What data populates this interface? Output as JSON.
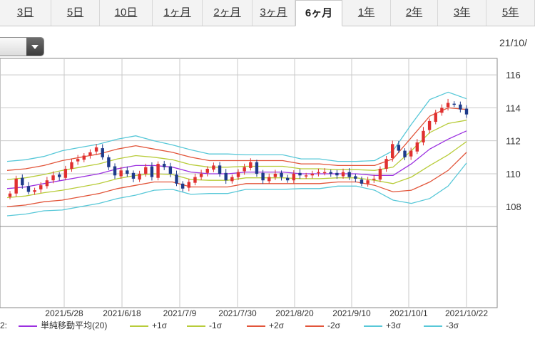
{
  "tabs": [
    {
      "label": "3日",
      "active": false
    },
    {
      "label": "5日",
      "active": false
    },
    {
      "label": "10日",
      "active": false
    },
    {
      "label": "1ヶ月",
      "active": false
    },
    {
      "label": "2ヶ月",
      "active": false
    },
    {
      "label": "3ヶ月",
      "active": false
    },
    {
      "label": "6ヶ月",
      "active": true
    },
    {
      "label": "1年",
      "active": false
    },
    {
      "label": "2年",
      "active": false
    },
    {
      "label": "3年",
      "active": false
    },
    {
      "label": "5年",
      "active": false
    }
  ],
  "header": {
    "date_label": "21/10/"
  },
  "legend": {
    "prefix": "2:",
    "items": [
      {
        "label": "単純移動平均(20)",
        "color": "#9b30e0"
      },
      {
        "label": "+1σ",
        "color": "#b8cc3a"
      },
      {
        "label": "-1σ",
        "color": "#b8cc3a"
      },
      {
        "label": "+2σ",
        "color": "#e2553a"
      },
      {
        "label": "-2σ",
        "color": "#e2553a"
      },
      {
        "label": "+3σ",
        "color": "#58c8d8"
      },
      {
        "label": "-3σ",
        "color": "#58c8d8"
      }
    ]
  },
  "chart_data": {
    "type": "candlestick",
    "y_ticks": [
      "116",
      "114",
      "112",
      "110",
      "108"
    ],
    "y_range": [
      106.8,
      117.0
    ],
    "x_labels": [
      "2021/5/28",
      "2021/6/18",
      "2021/7/9",
      "2021/7/30",
      "2021/8/20",
      "2021/9/10",
      "2021/10/1",
      "2021/10/22"
    ],
    "grid": true,
    "sma20": [
      109.1,
      109.2,
      109.4,
      109.6,
      109.8,
      110.0,
      110.3,
      110.5,
      110.5,
      110.4,
      110.1,
      110.0,
      110.0,
      110.1,
      110.1,
      110.1,
      110.0,
      110.0,
      110.0,
      110.0,
      109.9,
      109.9,
      110.6,
      111.5,
      112.1,
      112.6
    ],
    "sigma": [
      0.55,
      0.55,
      0.55,
      0.6,
      0.6,
      0.6,
      0.6,
      0.6,
      0.5,
      0.45,
      0.45,
      0.4,
      0.4,
      0.35,
      0.35,
      0.35,
      0.3,
      0.3,
      0.25,
      0.25,
      0.3,
      0.5,
      0.8,
      1.0,
      0.95,
      0.65
    ],
    "close": [
      108.8,
      109.7,
      109.3,
      108.9,
      109.0,
      109.3,
      109.6,
      109.9,
      109.8,
      110.3,
      110.7,
      110.9,
      111.1,
      111.3,
      111.6,
      111.0,
      110.4,
      109.9,
      110.2,
      110.0,
      109.7,
      110.0,
      110.4,
      109.8,
      110.6,
      110.4,
      110.0,
      109.4,
      109.1,
      109.5,
      109.8,
      110.0,
      110.3,
      110.5,
      110.0,
      109.6,
      109.8,
      110.1,
      110.4,
      110.7,
      110.0,
      109.6,
      109.8,
      110.0,
      109.8,
      109.6,
      110.0,
      109.9,
      109.9,
      110.0,
      110.1,
      110.1,
      110.0,
      109.9,
      110.1,
      109.8,
      109.7,
      109.4,
      109.6,
      109.7,
      110.3,
      110.9,
      111.8,
      111.4,
      111.0,
      111.4,
      111.9,
      112.6,
      113.2,
      113.7,
      114.0,
      114.3,
      114.2,
      113.9,
      113.6
    ],
    "candle_colors": {
      "up": "#e03030",
      "down": "#1e3a8a"
    }
  }
}
